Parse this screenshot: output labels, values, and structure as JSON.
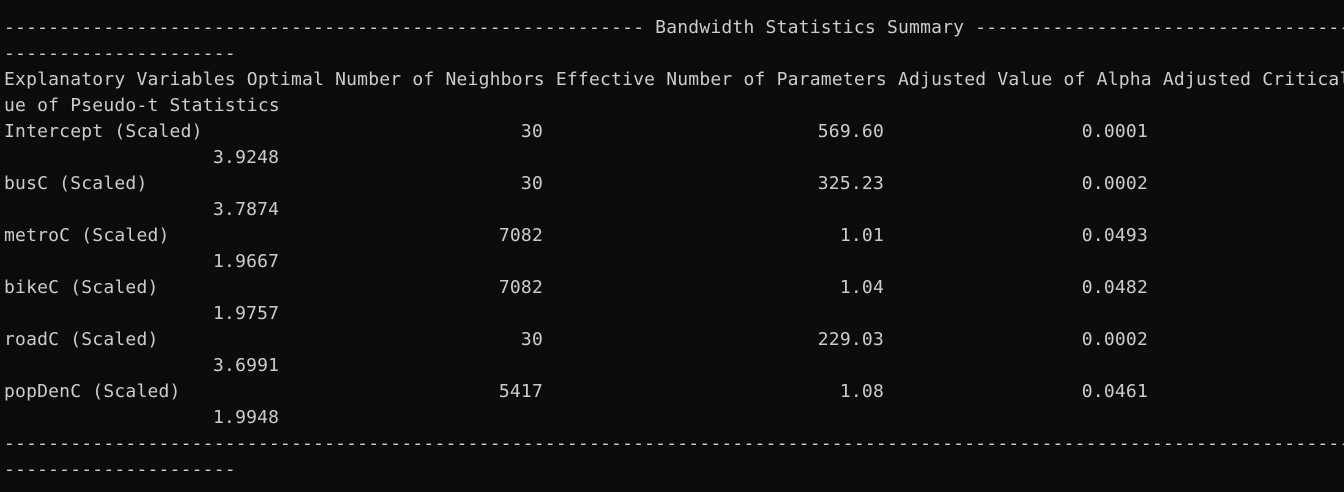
{
  "terminal": {
    "title_line": "---------------------------------------------------------- Bandwidth Statistics Summary ------------------------------------------",
    "title_line_wrap": "---------------------",
    "header_line": "Explanatory Variables Optimal Number of Neighbors Effective Number of Parameters Adjusted Value of Alpha Adjusted Critical Val",
    "header_line_wrap": "ue of Pseudo-t Statistics",
    "rows": [
      {
        "variable": "Intercept (Scaled)",
        "neighbors": "30",
        "parameters": "569.60",
        "alpha": "0.0001",
        "critical": "3.9248"
      },
      {
        "variable": "busC (Scaled)",
        "neighbors": "30",
        "parameters": "325.23",
        "alpha": "0.0002",
        "critical": "3.7874"
      },
      {
        "variable": "metroC (Scaled)",
        "neighbors": "7082",
        "parameters": "1.01",
        "alpha": "0.0493",
        "critical": "1.9667"
      },
      {
        "variable": "bikeC (Scaled)",
        "neighbors": "7082",
        "parameters": "1.04",
        "alpha": "0.0482",
        "critical": "1.9757"
      },
      {
        "variable": "roadC (Scaled)",
        "neighbors": "30",
        "parameters": "229.03",
        "alpha": "0.0002",
        "critical": "3.6991"
      },
      {
        "variable": "popDenC (Scaled)",
        "neighbors": "5417",
        "parameters": "1.08",
        "alpha": "0.0461",
        "critical": "1.9948"
      }
    ],
    "footer_line": "--------------------------------------------------------------------------------------------------------------------------------",
    "footer_line_wrap": "---------------------"
  }
}
